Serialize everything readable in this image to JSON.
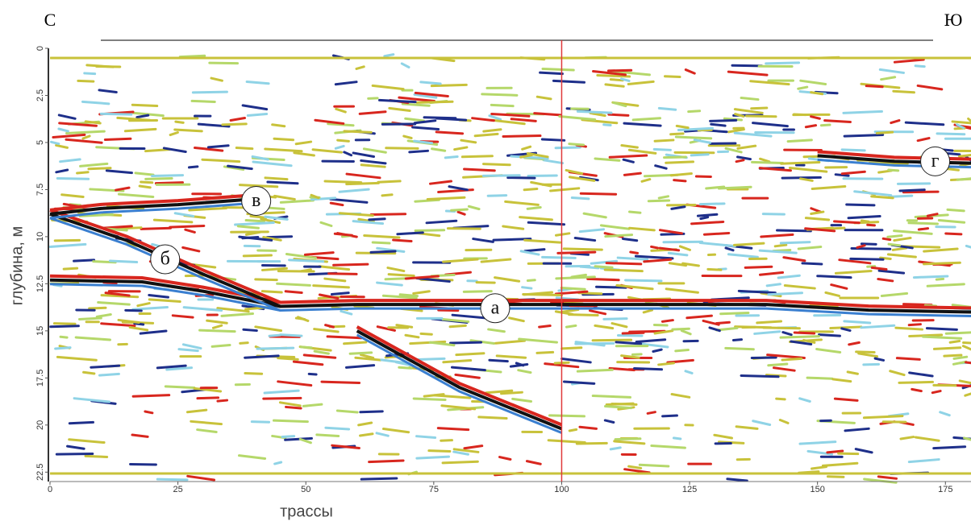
{
  "chart_data": {
    "type": "radargram",
    "left_label": "С",
    "right_label": "Ю",
    "xlabel": "трассы",
    "ylabel": "глубина, м",
    "xlim": [
      0,
      180
    ],
    "ylim": [
      0,
      23
    ],
    "xticks": [
      0,
      25,
      50,
      75,
      100,
      125,
      150,
      175
    ],
    "yticks": [
      0,
      2.5,
      5,
      7.5,
      10,
      12.5,
      15,
      17.5,
      20,
      22.5
    ],
    "marker_x": 100,
    "marker_color": "#e0393a",
    "horizons": [
      {
        "x": [
          0,
          18,
          30,
          45,
          60,
          100,
          140,
          160,
          180
        ],
        "values": [
          12.3,
          12.4,
          12.9,
          13.7,
          13.6,
          13.6,
          13.6,
          13.9,
          14.0
        ]
      },
      {
        "x": [
          0,
          15,
          30,
          45
        ],
        "values": [
          8.8,
          10.2,
          12.0,
          13.7
        ]
      },
      {
        "x": [
          0,
          10,
          25,
          40
        ],
        "values": [
          8.8,
          8.5,
          8.3,
          8.0
        ]
      },
      {
        "x": [
          150,
          165,
          180
        ],
        "values": [
          5.7,
          6.0,
          6.1
        ]
      },
      {
        "x": [
          60,
          80,
          100
        ],
        "values": [
          15.0,
          18.0,
          20.2
        ]
      }
    ],
    "annotations": [
      {
        "text": "а",
        "x": 87,
        "y": 13.8
      },
      {
        "text": "б",
        "x": 22.5,
        "y": 11.2
      },
      {
        "text": "в",
        "x": 40.3,
        "y": 8.1
      },
      {
        "text": "г",
        "x": 173,
        "y": 6.0
      }
    ]
  }
}
